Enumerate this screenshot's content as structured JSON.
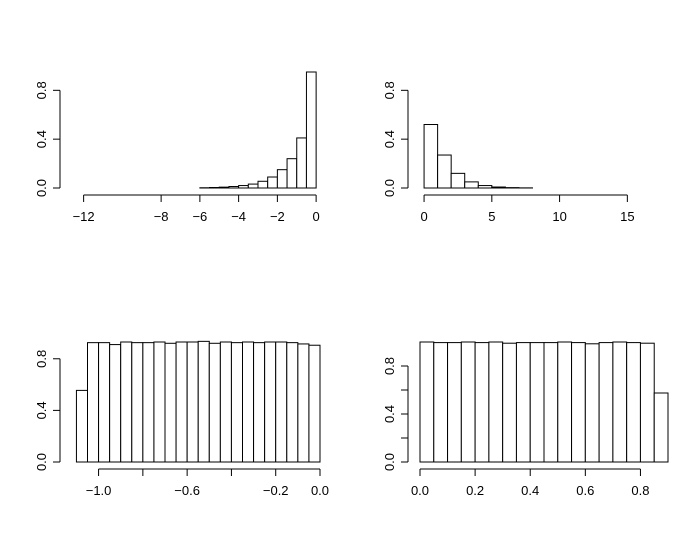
{
  "chart_data": [
    {
      "type": "histogram",
      "title": "",
      "xlabel": "",
      "ylabel": "",
      "x_ticks": [
        -12,
        -8,
        -6,
        -4,
        -2,
        0
      ],
      "x_tick_labels": [
        "−12",
        "−8",
        "−6",
        "−4",
        "−2",
        "0"
      ],
      "y_ticks": [
        0.0,
        0.4,
        0.8
      ],
      "y_tick_labels": [
        "0.0",
        "0.4",
        "0.8"
      ],
      "xlim": [
        -12.6,
        0.2
      ],
      "ylim": [
        0,
        0.95
      ],
      "bin_edges": [
        -12.5,
        -12.0,
        -11.5,
        -11.0,
        -10.5,
        -10.0,
        -9.5,
        -9.0,
        -8.5,
        -8.0,
        -7.5,
        -7.0,
        -6.5,
        -6.0,
        -5.5,
        -5.0,
        -4.5,
        -4.0,
        -3.5,
        -3.0,
        -2.5,
        -2.0,
        -1.5,
        -1.0,
        -0.5,
        0.0
      ],
      "values": [
        0,
        0,
        0,
        0,
        0,
        0,
        0,
        0,
        0,
        0,
        0,
        0,
        0,
        0.002,
        0.004,
        0.007,
        0.012,
        0.02,
        0.032,
        0.055,
        0.09,
        0.15,
        0.24,
        0.41,
        0.95
      ]
    },
    {
      "type": "histogram",
      "title": "",
      "xlabel": "",
      "ylabel": "",
      "x_ticks": [
        0,
        5,
        10,
        15
      ],
      "x_tick_labels": [
        "0",
        "5",
        "10",
        "15"
      ],
      "y_ticks": [
        0.0,
        0.4,
        0.8
      ],
      "y_tick_labels": [
        "0.0",
        "0.4",
        "0.8"
      ],
      "xlim": [
        -0.3,
        18.0
      ],
      "ylim": [
        0,
        0.95
      ],
      "bin_edges": [
        0,
        1,
        2,
        3,
        4,
        5,
        6,
        7,
        8,
        9,
        10,
        11,
        12,
        13,
        14,
        15,
        16,
        17,
        18
      ],
      "values": [
        0.52,
        0.27,
        0.12,
        0.05,
        0.02,
        0.008,
        0.003,
        0.001,
        0,
        0,
        0,
        0,
        0,
        0,
        0,
        0,
        0,
        0
      ]
    },
    {
      "type": "histogram",
      "title": "",
      "xlabel": "",
      "ylabel": "",
      "x_ticks": [
        -1.0,
        -0.8,
        -0.6,
        -0.4,
        -0.2,
        0.0
      ],
      "x_tick_labels": [
        "−1.0",
        "",
        "−0.6",
        "",
        "−0.2",
        "0.0"
      ],
      "y_ticks": [
        0.0,
        0.4,
        0.8
      ],
      "y_tick_labels": [
        "0.0",
        "0.4",
        "0.8"
      ],
      "xlim": [
        -1.12,
        0.0
      ],
      "ylim": [
        0,
        0.93
      ],
      "bin_edges": [
        -1.1,
        -1.05,
        -1.0,
        -0.95,
        -0.9,
        -0.85,
        -0.8,
        -0.75,
        -0.7,
        -0.65,
        -0.6,
        -0.55,
        -0.5,
        -0.45,
        -0.4,
        -0.35,
        -0.3,
        -0.25,
        -0.2,
        -0.15,
        -0.1,
        -0.05,
        0.0
      ],
      "values": [
        0.555,
        0.925,
        0.925,
        0.91,
        0.93,
        0.925,
        0.925,
        0.93,
        0.92,
        0.93,
        0.93,
        0.935,
        0.92,
        0.93,
        0.925,
        0.93,
        0.925,
        0.93,
        0.93,
        0.925,
        0.915,
        0.905
      ]
    },
    {
      "type": "histogram",
      "title": "",
      "xlabel": "",
      "ylabel": "",
      "x_ticks": [
        0.0,
        0.2,
        0.4,
        0.6,
        0.8
      ],
      "x_tick_labels": [
        "0.0",
        "0.2",
        "0.4",
        "0.6",
        "0.8"
      ],
      "y_ticks": [
        0.0,
        0.2,
        0.4,
        0.6,
        0.8
      ],
      "y_tick_labels": [
        "0.0",
        "",
        "0.4",
        "",
        "0.8"
      ],
      "xlim": [
        0.0,
        0.9
      ],
      "ylim": [
        0,
        1.0
      ],
      "bin_edges": [
        0.0,
        0.05,
        0.1,
        0.15,
        0.2,
        0.25,
        0.3,
        0.35,
        0.4,
        0.45,
        0.5,
        0.55,
        0.6,
        0.65,
        0.7,
        0.75,
        0.8,
        0.85,
        0.9
      ],
      "values": [
        1.0,
        0.995,
        0.995,
        1.0,
        0.995,
        1.0,
        0.99,
        0.995,
        0.995,
        0.995,
        1.0,
        0.995,
        0.985,
        0.995,
        1.0,
        0.995,
        0.99,
        0.575
      ]
    }
  ]
}
